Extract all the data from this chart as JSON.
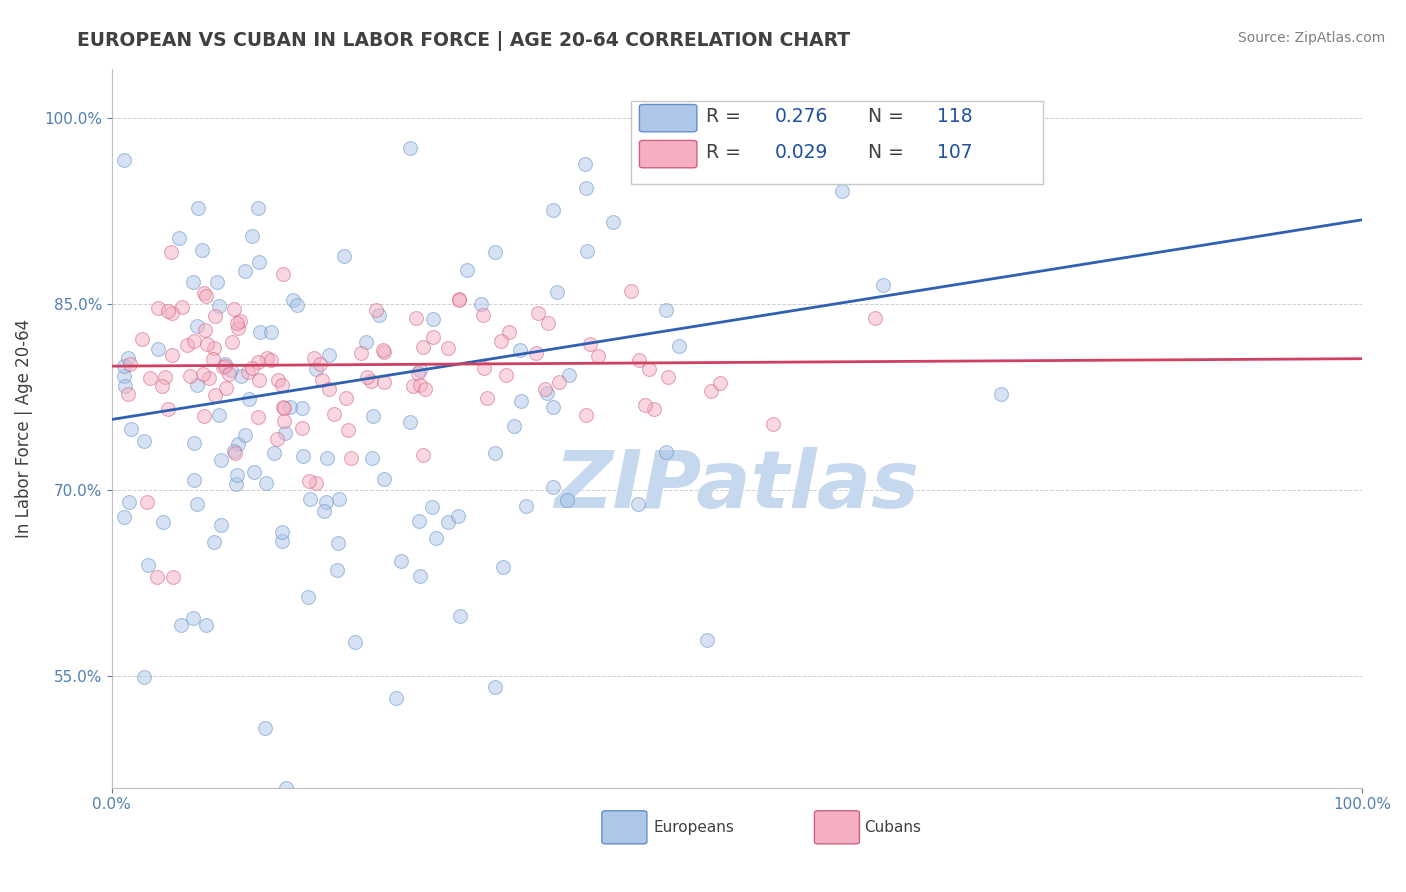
{
  "title": "EUROPEAN VS CUBAN IN LABOR FORCE | AGE 20-64 CORRELATION CHART",
  "source_text": "Source: ZipAtlas.com",
  "ylabel": "In Labor Force | Age 20-64",
  "xlim": [
    0.0,
    1.0
  ],
  "ylim": [
    0.46,
    1.04
  ],
  "yticks": [
    0.55,
    0.7,
    0.85,
    1.0
  ],
  "xticks": [
    0.0,
    1.0
  ],
  "european_R": 0.276,
  "european_N": 118,
  "cuban_R": 0.029,
  "cuban_N": 107,
  "european_color": "#aec6e8",
  "cuban_color": "#f4afc2",
  "european_edge_color": "#6090c8",
  "cuban_edge_color": "#d06080",
  "european_line_color": "#3060b0",
  "cuban_line_color": "#d04060",
  "background_color": "#ffffff",
  "grid_color": "#d0d0d0",
  "watermark": "ZIPatlas",
  "watermark_color": "#c5d8ee",
  "title_color": "#404040",
  "source_color": "#808080",
  "legend_value_color": "#2050a0",
  "marker_size": 100,
  "marker_alpha": 0.5,
  "line_width": 2.0,
  "eu_line_y0": 0.757,
  "eu_line_y1": 0.918,
  "cu_line_y0": 0.8,
  "cu_line_y1": 0.806
}
